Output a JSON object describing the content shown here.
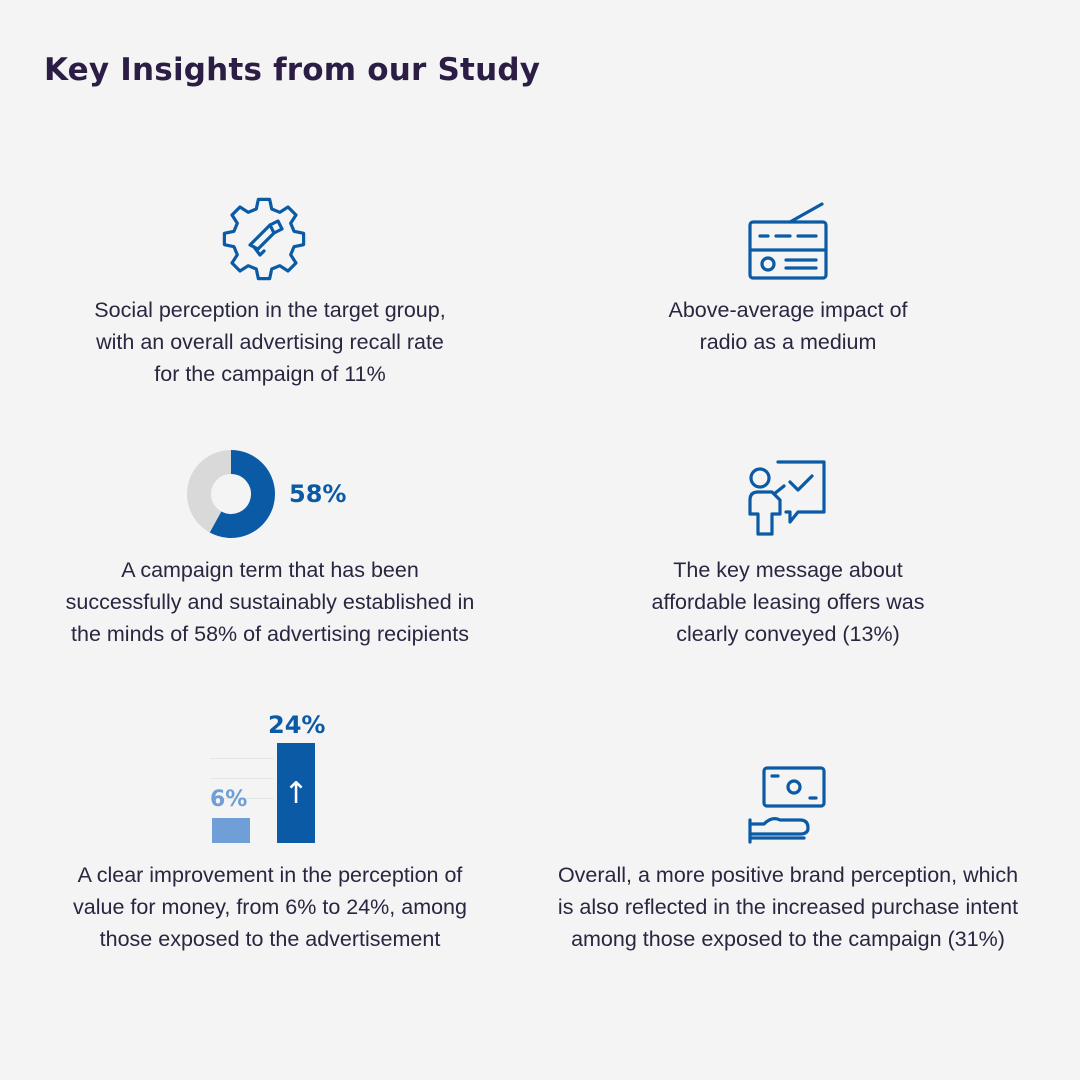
{
  "title": "Key Insights from our Study",
  "colors": {
    "accent": "#0a5aa6",
    "light_accent": "#6f9fd6",
    "donut_gray": "#d9d9d9",
    "text": "#2b2540"
  },
  "insights": [
    {
      "icon": "gear-megaphone-icon",
      "text": "Social perception in the target group,\nwith an overall advertising recall rate\nfor the campaign of 11%"
    },
    {
      "icon": "radio-icon",
      "text": "Above-average impact of\nradio as a medium"
    },
    {
      "icon": "donut-chart",
      "value_label": "58%",
      "value": 58,
      "text": "A campaign term that has been\nsuccessfully and sustainably established in\nthe minds of 58% of advertising recipients"
    },
    {
      "icon": "presenter-check-icon",
      "text": "The key message about\naffordable leasing offers was\nclearly conveyed (13%)"
    },
    {
      "icon": "bar-comparison",
      "before_label": "6%",
      "after_label": "24%",
      "before": 6,
      "after": 24,
      "arrow": "↑",
      "text": "A clear improvement in the perception of\nvalue for money, from 6% to 24%, among\nthose exposed to the advertisement"
    },
    {
      "icon": "hand-money-icon",
      "text": "Overall, a more positive brand perception, which\nis also reflected in the increased purchase intent\namong those exposed to the campaign (31%)"
    }
  ]
}
